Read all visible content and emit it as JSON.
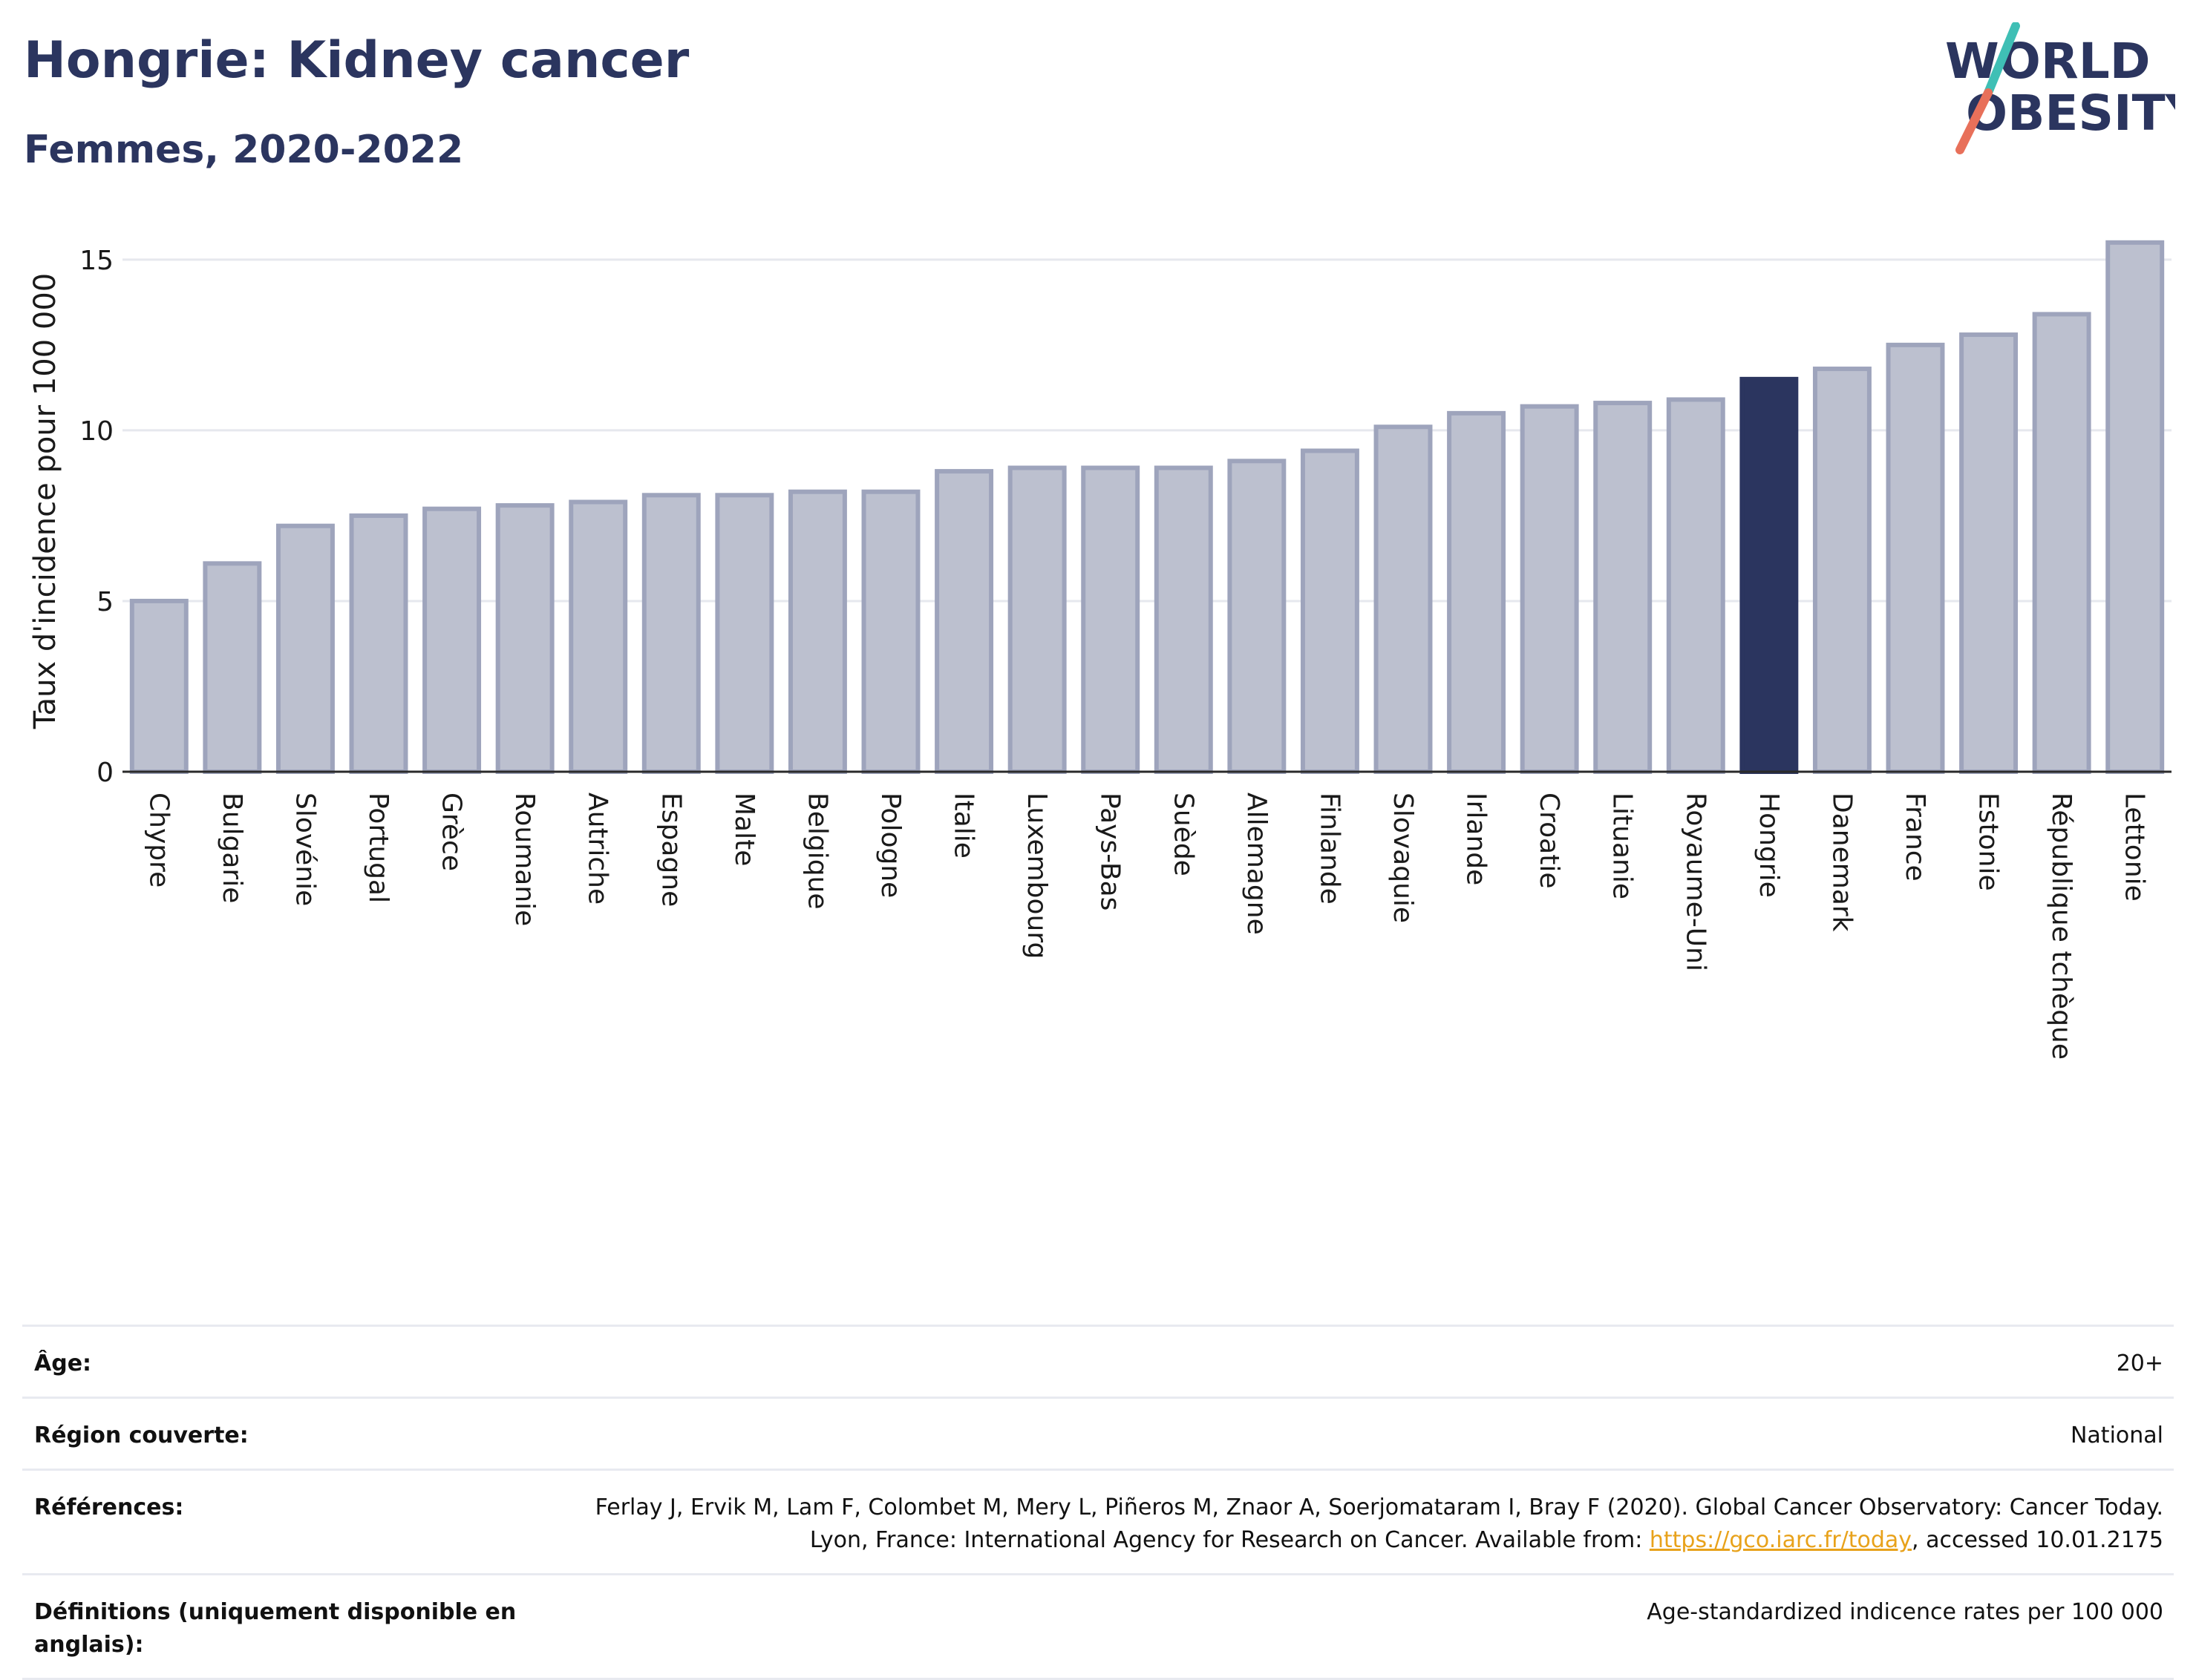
{
  "header": {
    "title": "Hongrie: Kidney cancer",
    "subtitle": "Femmes, 2020-2022"
  },
  "logo": {
    "line1": "WORLD",
    "line2": "OBESITY",
    "icon": "world-obesity-logo"
  },
  "colors": {
    "bar": "#bcc0cf",
    "bar_outline": "#9ea4bc",
    "highlight": "#2b355f",
    "title": "#2b355f",
    "link": "#e8a21b",
    "logo_slash_top": "#3fbfb5",
    "logo_slash_bottom": "#e8705a"
  },
  "chart_data": {
    "type": "bar",
    "ylabel": "Taux d'incidence pour 100 000",
    "xlabel": "",
    "ylim": [
      0,
      16.3
    ],
    "yticks": [
      0,
      5,
      10,
      15
    ],
    "grid": true,
    "highlight": "Hongrie",
    "categories": [
      "Chypre",
      "Bulgarie",
      "Slovénie",
      "Portugal",
      "Grèce",
      "Roumanie",
      "Autriche",
      "Espagne",
      "Malte",
      "Belgique",
      "Pologne",
      "Italie",
      "Luxembourg",
      "Pays-Bas",
      "Suède",
      "Allemagne",
      "Finlande",
      "Slovaquie",
      "Irlande",
      "Croatie",
      "Lituanie",
      "Royaume-Uni",
      "Hongrie",
      "Danemark",
      "France",
      "Estonie",
      "République tchèque",
      "Lettonie"
    ],
    "values": [
      5.0,
      6.1,
      7.2,
      7.5,
      7.7,
      7.8,
      7.9,
      8.1,
      8.1,
      8.2,
      8.2,
      8.8,
      8.9,
      8.9,
      8.9,
      9.1,
      9.4,
      10.1,
      10.5,
      10.7,
      10.8,
      10.9,
      11.5,
      11.8,
      12.5,
      12.8,
      13.4,
      15.5
    ]
  },
  "meta": {
    "age_label": "Âge:",
    "age_value": "20+",
    "region_label": "Région couverte:",
    "region_value": "National",
    "references_label": "Références:",
    "references_text_1": "Ferlay J, Ervik M, Lam F, Colombet M, Mery L, Piñeros M, Znaor A, Soerjomataram I, Bray F (2020). Global Cancer Observatory: Cancer Today. Lyon, France: International Agency for Research on Cancer. Available from: ",
    "references_link": "https://gco.iarc.fr/today",
    "references_text_2": ", accessed 10.01.2175",
    "definitions_label": "Définitions (uniquement disponible en anglais):",
    "definitions_value": "Age-standardized indicence rates per 100 000"
  }
}
